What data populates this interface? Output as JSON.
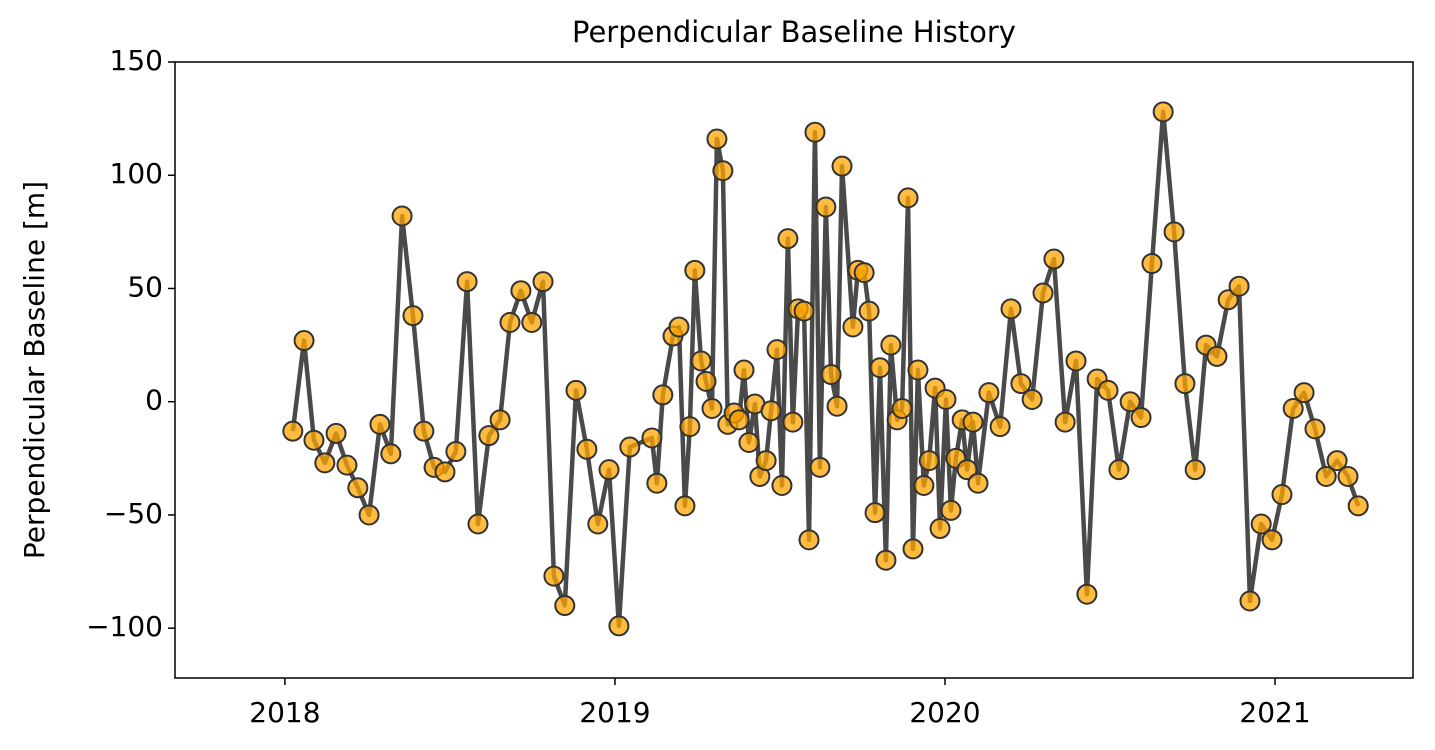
{
  "chart_data": {
    "type": "line",
    "title": "Perpendicular Baseline History",
    "y_label": "Perpendicular Baseline [m]",
    "line_color": "#404040",
    "marker_color": "#ffa500",
    "marker_edge_color": "#333333",
    "x": [
      2018.024,
      2018.058,
      2018.088,
      2018.121,
      2018.155,
      2018.188,
      2018.221,
      2018.255,
      2018.288,
      2018.321,
      2018.355,
      2018.388,
      2018.421,
      2018.452,
      2018.485,
      2018.518,
      2018.552,
      2018.585,
      2018.618,
      2018.652,
      2018.682,
      2018.715,
      2018.748,
      2018.782,
      2018.815,
      2018.848,
      2018.882,
      2018.915,
      2018.948,
      2018.982,
      2019.012,
      2019.045,
      2019.112,
      2019.127,
      2019.145,
      2019.176,
      2019.194,
      2019.212,
      2019.227,
      2019.242,
      2019.261,
      2019.276,
      2019.294,
      2019.309,
      2019.327,
      2019.342,
      2019.361,
      2019.376,
      2019.391,
      2019.406,
      2019.424,
      2019.439,
      2019.458,
      2019.473,
      2019.491,
      2019.506,
      2019.524,
      2019.539,
      2019.555,
      2019.573,
      2019.588,
      2019.606,
      2019.621,
      2019.639,
      2019.655,
      2019.673,
      2019.688,
      2019.721,
      2019.736,
      2019.755,
      2019.77,
      2019.788,
      2019.803,
      2019.821,
      2019.836,
      2019.855,
      2019.87,
      2019.888,
      2019.903,
      2019.918,
      2019.936,
      2019.952,
      2019.97,
      2019.985,
      2020.003,
      2020.018,
      2020.033,
      2020.052,
      2020.067,
      2020.085,
      2020.1,
      2020.133,
      2020.167,
      2020.2,
      2020.23,
      2020.264,
      2020.297,
      2020.33,
      2020.364,
      2020.397,
      2020.43,
      2020.461,
      2020.494,
      2020.527,
      2020.561,
      2020.594,
      2020.627,
      2020.661,
      2020.694,
      2020.727,
      2020.758,
      2020.791,
      2020.824,
      2020.858,
      2020.891,
      2020.924,
      2020.958,
      2020.991,
      2021.021,
      2021.055,
      2021.088,
      2021.121,
      2021.155,
      2021.188,
      2021.221,
      2021.252
    ],
    "values": [
      -13,
      27,
      -17,
      -27,
      -14,
      -28,
      -38,
      -50,
      -10,
      -23,
      82,
      38,
      -13,
      -29,
      -31,
      -22,
      53,
      -54,
      -15,
      -8,
      35,
      49,
      35,
      53,
      -77,
      -90,
      5,
      -21,
      -54,
      -30,
      -99,
      -20,
      -16,
      -36,
      3,
      29,
      33,
      -46,
      -11,
      58,
      18,
      9,
      -3,
      116,
      102,
      -10,
      -5,
      -8,
      14,
      -18,
      -1,
      -33,
      -26,
      -4,
      23,
      -37,
      72,
      -9,
      41,
      40,
      -61,
      119,
      -29,
      86,
      12,
      -2,
      104,
      33,
      58,
      57,
      40,
      -49,
      15,
      -70,
      25,
      -8,
      -3,
      90,
      -65,
      14,
      -37,
      -26,
      6,
      -56,
      1,
      -48,
      -25,
      -8,
      -30,
      -9,
      -36,
      4,
      -11,
      41,
      8,
      1,
      48,
      63,
      -9,
      18,
      -85,
      10,
      5,
      -30,
      0,
      -7,
      61,
      128,
      75,
      8,
      -30,
      25,
      20,
      45,
      51,
      -88,
      -54,
      -61,
      -41,
      -3,
      4,
      -12,
      -33,
      -26,
      -33,
      -46
    ],
    "xlim": [
      2017.667,
      2021.418
    ],
    "xticks": [
      2018,
      2019,
      2020,
      2021
    ],
    "ylim": [
      -122,
      150
    ],
    "yticks": [
      {
        "value": -100,
        "label": "−100"
      },
      {
        "value": -50,
        "label": "−50"
      },
      0,
      50,
      100,
      150
    ]
  }
}
